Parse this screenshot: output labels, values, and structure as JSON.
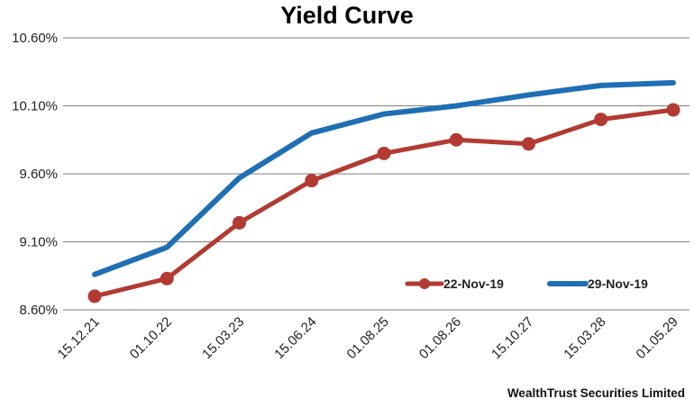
{
  "chart_data": {
    "type": "line",
    "title": "Yield Curve",
    "xlabel": "",
    "ylabel": "",
    "categories": [
      "15.12.21",
      "01.10.22",
      "15.03.23",
      "15.06.24",
      "01.08.25",
      "01.08.26",
      "15.10.27",
      "15.03.28",
      "01.05.29"
    ],
    "y_tick_labels": [
      "8.60%",
      "9.10%",
      "9.60%",
      "10.10%",
      "10.60%"
    ],
    "ylim": [
      8.6,
      10.6
    ],
    "ytick_step": 0.5,
    "grid": true,
    "legend_position": "bottom-right",
    "series": [
      {
        "name": "22-Nov-19",
        "color": "#b23a32",
        "markers": true,
        "values": [
          8.7,
          8.83,
          9.24,
          9.55,
          9.75,
          9.85,
          9.82,
          10.0,
          10.07
        ]
      },
      {
        "name": "29-Nov-19",
        "color": "#1f6fb4",
        "markers": false,
        "values": [
          8.86,
          9.06,
          9.57,
          9.9,
          10.04,
          10.1,
          10.18,
          10.25,
          10.27
        ]
      }
    ]
  },
  "footer": {
    "source": "WealthTrust Securities Limited"
  }
}
